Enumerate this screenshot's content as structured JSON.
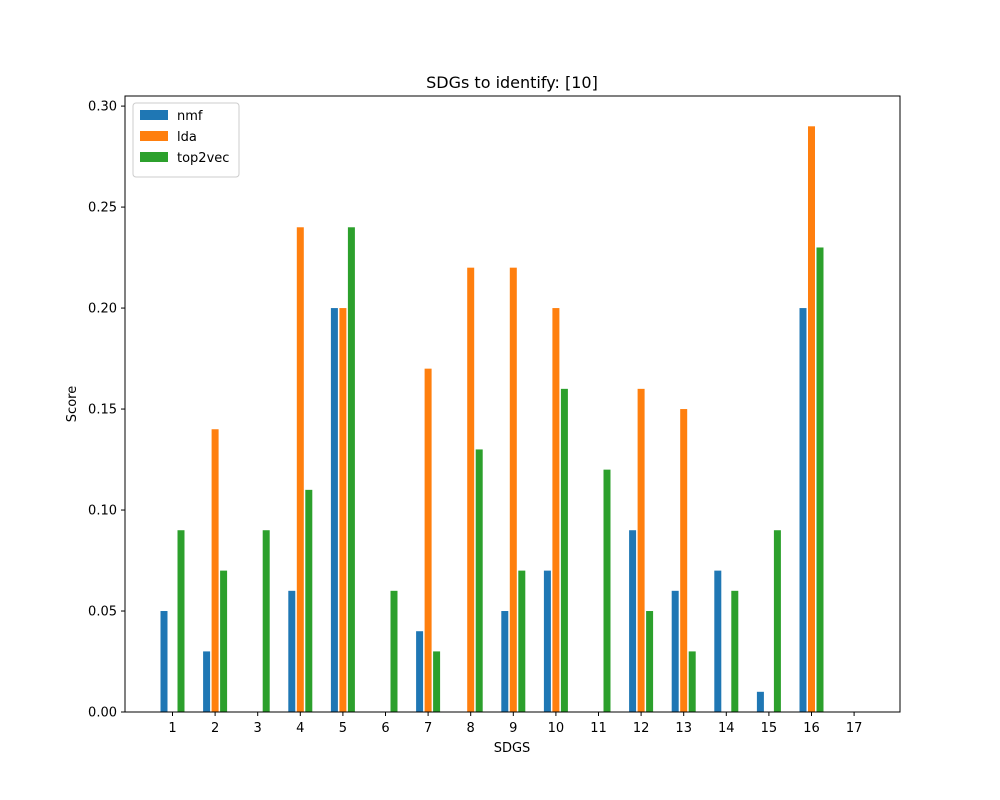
{
  "chart_data": {
    "type": "bar",
    "title": "SDGs to identify: [10]",
    "xlabel": "SDGS",
    "ylabel": "Score",
    "ylim": [
      0,
      0.305
    ],
    "categories": [
      "1",
      "2",
      "3",
      "4",
      "5",
      "6",
      "7",
      "8",
      "9",
      "10",
      "11",
      "12",
      "13",
      "14",
      "15",
      "16",
      "17"
    ],
    "yticks": [
      "0.00",
      "0.05",
      "0.10",
      "0.15",
      "0.20",
      "0.25",
      "0.30"
    ],
    "legend_position": "upper-left",
    "grid": false,
    "series": [
      {
        "name": "nmf",
        "color": "#1f77b4",
        "values": [
          0.05,
          0.03,
          0,
          0.06,
          0.2,
          0,
          0.04,
          0,
          0.05,
          0.07,
          0,
          0.09,
          0.06,
          0.07,
          0.01,
          0.2,
          0
        ]
      },
      {
        "name": "lda",
        "color": "#ff7f0e",
        "values": [
          0,
          0.14,
          0,
          0.24,
          0.2,
          0,
          0.17,
          0.22,
          0.22,
          0.2,
          0,
          0.16,
          0.15,
          0,
          0,
          0.29,
          0
        ]
      },
      {
        "name": "top2vec",
        "color": "#2ca02c",
        "values": [
          0.09,
          0.07,
          0.09,
          0.11,
          0.24,
          0.06,
          0.03,
          0.13,
          0.07,
          0.16,
          0.12,
          0.05,
          0.03,
          0.06,
          0.09,
          0.23,
          0
        ]
      }
    ]
  }
}
